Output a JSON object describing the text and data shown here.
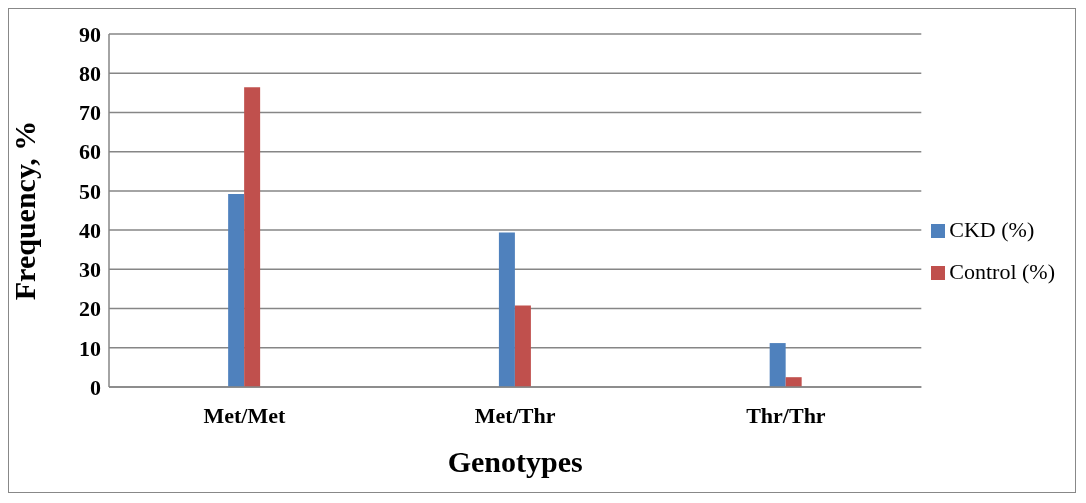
{
  "chart_data": {
    "type": "bar",
    "xlabel": "Genotypes",
    "ylabel": "Frequency,  %",
    "categories": [
      "Met/Met",
      "Met/Thr",
      "Thr/Thr"
    ],
    "series": [
      {
        "name": "CKD (%)",
        "color": "#4f81bd",
        "values": [
          49.2,
          39.4,
          11.2
        ]
      },
      {
        "name": "Control (%)",
        "color": "#c0504d",
        "values": [
          76.4,
          20.8,
          2.5
        ]
      }
    ],
    "ylim": [
      0,
      90
    ],
    "yticks": [
      0,
      10,
      20,
      30,
      40,
      50,
      60,
      70,
      80,
      90
    ],
    "grid": "y",
    "legend": "right"
  }
}
